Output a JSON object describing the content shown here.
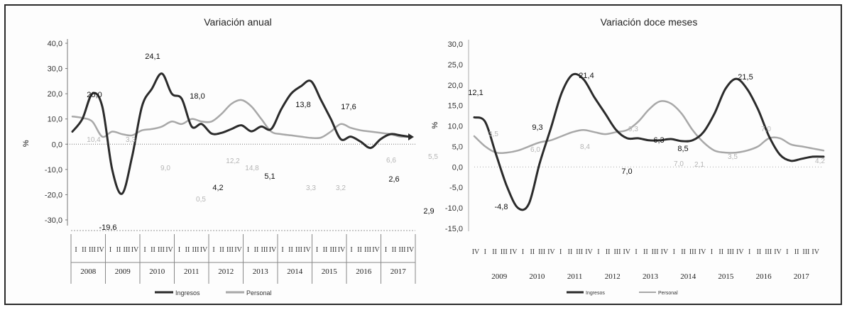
{
  "chart_data": [
    {
      "type": "line",
      "title": "Variación anual",
      "ylabel": "%",
      "ylim": [
        -30,
        40
      ],
      "yticks": [
        "40,0",
        "30,0",
        "20,0",
        "10,0",
        "0,0",
        "-10,0",
        "-20,0",
        "-30,0"
      ],
      "years": [
        "2008",
        "2009",
        "2010",
        "2011",
        "2012",
        "2013",
        "2014",
        "2015",
        "2016",
        "2017"
      ],
      "quarter_labels": [
        "I",
        "II",
        "III",
        "IV"
      ],
      "series": [
        {
          "name": "Ingresos",
          "color": "#2b2b2b",
          "values": [
            5,
            10,
            20,
            15,
            -10,
            -19.6,
            -5,
            15,
            22,
            28,
            20,
            18,
            7,
            8,
            4.2,
            4.5,
            6,
            7.5,
            5.1,
            7,
            6,
            13.8,
            20,
            23,
            25,
            17.6,
            10,
            2,
            3,
            1,
            -1.5,
            2,
            4,
            3.5,
            2.9
          ]
        },
        {
          "name": "Personal",
          "color": "#a8a8a8",
          "values": [
            11,
            10.4,
            9,
            3,
            5,
            4,
            3.5,
            5.5,
            6,
            7,
            9,
            8,
            10,
            9,
            9,
            12,
            16,
            17.5,
            15,
            10,
            5,
            4,
            3.5,
            3,
            2.5,
            2.6,
            5,
            8,
            6.5,
            5.5,
            5,
            4.5,
            4,
            3,
            3
          ]
        }
      ],
      "data_labels": {
        "dark": [
          "20,0",
          "-19,6",
          "24,1",
          "18,0",
          "4,2",
          "5,1",
          "13,8",
          "17,6",
          "2,6",
          "2,9"
        ],
        "light": [
          "10,4",
          "3,3",
          "9,0",
          "0,5",
          "12,2",
          "14,8",
          "3,3",
          "3,2",
          "6,6",
          "5,5"
        ]
      },
      "legend": [
        "Ingresos",
        "Personal"
      ]
    },
    {
      "type": "line",
      "title": "Variación doce meses",
      "ylabel": "%",
      "ylim": [
        -15,
        30
      ],
      "yticks": [
        "30,0",
        "25,0",
        "20,0",
        "15,0",
        "10,0",
        "5,0",
        "0,0",
        "-5,0",
        "-10,0",
        "-15,0"
      ],
      "years": [
        "2009",
        "2010",
        "2011",
        "2012",
        "2013",
        "2014",
        "2015",
        "2016",
        "2017"
      ],
      "quarter_labels": [
        "IV",
        "I",
        "II",
        "III",
        "IV"
      ],
      "series": [
        {
          "name": "Ingresos",
          "color": "#2b2b2b",
          "values": [
            12.1,
            11,
            3,
            -4.8,
            -10,
            -9,
            1,
            9.3,
            18,
            22.5,
            21.4,
            17,
            13,
            9,
            7,
            7,
            6.5,
            6.5,
            6.8,
            6.3,
            6.5,
            8.5,
            13,
            19,
            21.5,
            19,
            14,
            7.5,
            3,
            1.5,
            2,
            2.5,
            2.5
          ]
        },
        {
          "name": "Personal",
          "color": "#a8a8a8",
          "values": [
            7.5,
            5,
            3.5,
            3.5,
            4,
            5,
            6,
            6.5,
            7.5,
            8.5,
            9,
            8.5,
            8,
            8.5,
            9,
            11,
            14,
            16,
            15.5,
            13,
            9,
            6,
            4,
            3.5,
            3.5,
            4,
            5,
            7,
            7,
            5.5,
            5,
            4.5,
            4
          ]
        }
      ],
      "data_labels": {
        "dark": [
          "12,1",
          "-4,8",
          "9,3",
          "21,4",
          "7,0",
          "6,3",
          "8,5",
          "21,5"
        ],
        "light": [
          "2,1",
          "3,5",
          "6,0",
          "8,4",
          "9,3",
          "7,0",
          "2,1",
          "3,5",
          "7,0",
          "4,2"
        ]
      },
      "legend": [
        "Ingresos",
        "Personal"
      ]
    }
  ]
}
